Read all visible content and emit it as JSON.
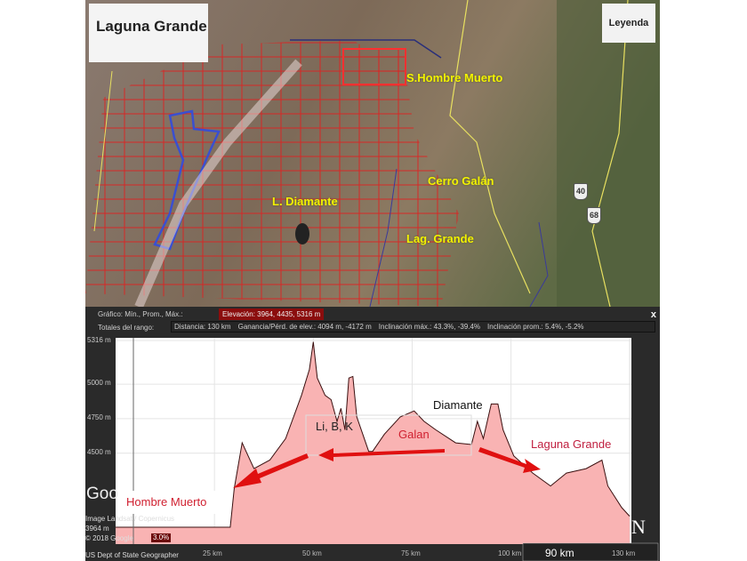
{
  "map": {
    "title": "Laguna Grande",
    "legend_button": "Leyenda",
    "places": [
      "S.Hombre Muerto",
      "Cerro Galán",
      "L. Diamante",
      "Lag. Grande"
    ],
    "road_shields": [
      "40",
      "68"
    ],
    "colors": {
      "claims": "#e02020",
      "project_outline": "#3a4fd0",
      "roads": "#e8e060",
      "labels": "#f2f200"
    }
  },
  "stats": {
    "graph_label": "Gráfico: Mín., Prom., Máx.:",
    "elevation": "Elevación: 3964, 4435, 5316 m",
    "range_totals_label": "Totales del rango:",
    "distance": "Distancia: 130 km",
    "gain_loss": "Ganancia/Pérd. de elev.: 4094 m, -4172 m",
    "max_slope": "Inclinación máx.: 43.3%, -39.4%",
    "avg_slope": "Inclinación prom.: 5.4%, -5.2%",
    "close": "x"
  },
  "chart_data": {
    "type": "area",
    "xlabel": "",
    "ylabel": "",
    "xlim": [
      0,
      130
    ],
    "ylim": [
      3964,
      5316
    ],
    "y_ticks": [
      "5316 m",
      "5000 m",
      "4750 m",
      "4500 m"
    ],
    "y_tick_values": [
      5316,
      5000,
      4750,
      4500
    ],
    "x_ticks": [
      "25 km",
      "50 km",
      "75 km",
      "100 km",
      "130 km"
    ],
    "x_tick_values": [
      25,
      50,
      75,
      100,
      130
    ],
    "grid": true,
    "fill_color": "#f9b3b3",
    "line_color": "#3a1010",
    "x": [
      0,
      29,
      30,
      32,
      35,
      39,
      43,
      47,
      49,
      50,
      51,
      53,
      54.5,
      56,
      57,
      58,
      59,
      60,
      61,
      64,
      65,
      68,
      72,
      75.5,
      78,
      81,
      86,
      90,
      91.5,
      93,
      95,
      96.7,
      98,
      100.7,
      105.5,
      110,
      114,
      119,
      123,
      124.5,
      128,
      130
    ],
    "y": [
      3964,
      3964,
      4244,
      4575,
      4388,
      4450,
      4606,
      4919,
      5106,
      5306,
      5044,
      4919,
      4888,
      4731,
      4825,
      4669,
      5044,
      5056,
      4763,
      4513,
      4513,
      4638,
      4763,
      4806,
      4731,
      4669,
      4575,
      4563,
      4731,
      4606,
      4856,
      4856,
      4669,
      4481,
      4356,
      4263,
      4356,
      4388,
      4450,
      4263,
      4106,
      4044
    ],
    "annotations": {
      "hombre_muerto": "Hombre Muerto",
      "li_b_k": "Li, B, K",
      "galan": "Galan",
      "diamante": "Diamante",
      "laguna_grande": "Laguna Grande"
    }
  },
  "footer": {
    "google_logo": "Goo",
    "attribution_1": "Image Landsat / Copernicus",
    "attribution_2": "© 2018 Google",
    "attribution_3": "US Dept of State Geographer",
    "cursor_elev": "3964 m",
    "cursor_slope": "3.0%",
    "scale": "90 km",
    "north": "N"
  }
}
